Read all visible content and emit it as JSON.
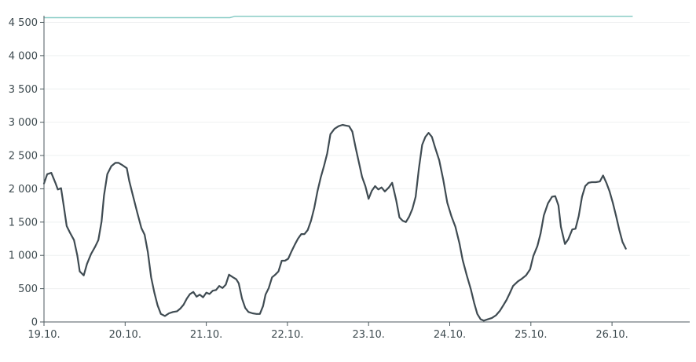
{
  "chart_data": {
    "type": "line",
    "title": "",
    "xlabel": "",
    "ylabel": "",
    "ylim": [
      0,
      4600
    ],
    "xlim_days": [
      0,
      8
    ],
    "grid": true,
    "y_ticks": [
      0,
      500,
      1000,
      1500,
      2000,
      2500,
      3000,
      3500,
      4000,
      4500
    ],
    "y_tick_labels": [
      "0",
      "500",
      "1 000",
      "1 500",
      "2 000",
      "2 500",
      "3 000",
      "3 500",
      "4 000",
      "4 500"
    ],
    "x_ticks": [
      {
        "day": 0,
        "label": "19.10."
      },
      {
        "day": 1,
        "label": "20.10."
      },
      {
        "day": 2,
        "label": "21.10."
      },
      {
        "day": 3,
        "label": "22.10."
      },
      {
        "day": 4,
        "label": "23.10."
      },
      {
        "day": 5,
        "label": "24.10."
      },
      {
        "day": 6,
        "label": "25.10."
      },
      {
        "day": 7,
        "label": "26.10."
      }
    ],
    "colors": {
      "main_series": "#3f4b52",
      "capacity_series": "#88ccc6"
    },
    "series": [
      {
        "key": "capacity",
        "points": [
          [
            0,
            4570
          ],
          [
            2.29,
            4570
          ],
          [
            2.35,
            4590
          ],
          [
            7.25,
            4590
          ]
        ]
      },
      {
        "key": "main",
        "points": [
          [
            0.0,
            2080
          ],
          [
            0.04,
            2220
          ],
          [
            0.09,
            2240
          ],
          [
            0.14,
            2090
          ],
          [
            0.17,
            1990
          ],
          [
            0.21,
            2010
          ],
          [
            0.24,
            1770
          ],
          [
            0.28,
            1440
          ],
          [
            0.32,
            1340
          ],
          [
            0.37,
            1230
          ],
          [
            0.41,
            1000
          ],
          [
            0.44,
            760
          ],
          [
            0.49,
            700
          ],
          [
            0.53,
            870
          ],
          [
            0.58,
            1020
          ],
          [
            0.63,
            1130
          ],
          [
            0.67,
            1230
          ],
          [
            0.71,
            1510
          ],
          [
            0.74,
            1900
          ],
          [
            0.78,
            2220
          ],
          [
            0.83,
            2340
          ],
          [
            0.88,
            2390
          ],
          [
            0.92,
            2390
          ],
          [
            0.96,
            2360
          ],
          [
            1.02,
            2310
          ],
          [
            1.05,
            2120
          ],
          [
            1.1,
            1880
          ],
          [
            1.15,
            1640
          ],
          [
            1.2,
            1410
          ],
          [
            1.24,
            1310
          ],
          [
            1.28,
            1050
          ],
          [
            1.32,
            670
          ],
          [
            1.36,
            440
          ],
          [
            1.4,
            250
          ],
          [
            1.44,
            120
          ],
          [
            1.49,
            90
          ],
          [
            1.54,
            130
          ],
          [
            1.59,
            150
          ],
          [
            1.64,
            160
          ],
          [
            1.68,
            200
          ],
          [
            1.72,
            260
          ],
          [
            1.76,
            350
          ],
          [
            1.8,
            420
          ],
          [
            1.84,
            450
          ],
          [
            1.88,
            380
          ],
          [
            1.92,
            410
          ],
          [
            1.96,
            370
          ],
          [
            2.0,
            440
          ],
          [
            2.04,
            420
          ],
          [
            2.08,
            470
          ],
          [
            2.12,
            480
          ],
          [
            2.16,
            540
          ],
          [
            2.2,
            510
          ],
          [
            2.24,
            560
          ],
          [
            2.28,
            710
          ],
          [
            2.33,
            670
          ],
          [
            2.37,
            640
          ],
          [
            2.4,
            580
          ],
          [
            2.44,
            350
          ],
          [
            2.48,
            210
          ],
          [
            2.52,
            150
          ],
          [
            2.57,
            130
          ],
          [
            2.62,
            120
          ],
          [
            2.66,
            120
          ],
          [
            2.7,
            240
          ],
          [
            2.73,
            410
          ],
          [
            2.77,
            510
          ],
          [
            2.81,
            670
          ],
          [
            2.85,
            710
          ],
          [
            2.89,
            760
          ],
          [
            2.93,
            920
          ],
          [
            2.97,
            920
          ],
          [
            3.01,
            950
          ],
          [
            3.05,
            1060
          ],
          [
            3.09,
            1160
          ],
          [
            3.13,
            1250
          ],
          [
            3.17,
            1320
          ],
          [
            3.21,
            1320
          ],
          [
            3.25,
            1380
          ],
          [
            3.29,
            1520
          ],
          [
            3.33,
            1710
          ],
          [
            3.37,
            1960
          ],
          [
            3.41,
            2170
          ],
          [
            3.45,
            2340
          ],
          [
            3.49,
            2530
          ],
          [
            3.53,
            2820
          ],
          [
            3.58,
            2900
          ],
          [
            3.63,
            2940
          ],
          [
            3.68,
            2960
          ],
          [
            3.72,
            2950
          ],
          [
            3.76,
            2940
          ],
          [
            3.8,
            2860
          ],
          [
            3.84,
            2620
          ],
          [
            3.88,
            2400
          ],
          [
            3.92,
            2180
          ],
          [
            3.96,
            2040
          ],
          [
            4.0,
            1850
          ],
          [
            4.04,
            1970
          ],
          [
            4.08,
            2040
          ],
          [
            4.12,
            1990
          ],
          [
            4.16,
            2020
          ],
          [
            4.2,
            1960
          ],
          [
            4.25,
            2020
          ],
          [
            4.29,
            2090
          ],
          [
            4.34,
            1830
          ],
          [
            4.38,
            1570
          ],
          [
            4.42,
            1520
          ],
          [
            4.46,
            1500
          ],
          [
            4.5,
            1580
          ],
          [
            4.54,
            1700
          ],
          [
            4.58,
            1880
          ],
          [
            4.62,
            2300
          ],
          [
            4.66,
            2660
          ],
          [
            4.7,
            2780
          ],
          [
            4.74,
            2840
          ],
          [
            4.78,
            2780
          ],
          [
            4.82,
            2620
          ],
          [
            4.87,
            2430
          ],
          [
            4.92,
            2140
          ],
          [
            4.97,
            1790
          ],
          [
            5.02,
            1590
          ],
          [
            5.07,
            1430
          ],
          [
            5.12,
            1180
          ],
          [
            5.16,
            930
          ],
          [
            5.21,
            700
          ],
          [
            5.26,
            490
          ],
          [
            5.3,
            290
          ],
          [
            5.34,
            120
          ],
          [
            5.38,
            40
          ],
          [
            5.42,
            20
          ],
          [
            5.47,
            40
          ],
          [
            5.52,
            60
          ],
          [
            5.57,
            100
          ],
          [
            5.62,
            170
          ],
          [
            5.66,
            250
          ],
          [
            5.7,
            330
          ],
          [
            5.74,
            430
          ],
          [
            5.78,
            540
          ],
          [
            5.84,
            610
          ],
          [
            5.89,
            650
          ],
          [
            5.94,
            700
          ],
          [
            5.99,
            790
          ],
          [
            6.03,
            990
          ],
          [
            6.08,
            1140
          ],
          [
            6.12,
            1330
          ],
          [
            6.16,
            1600
          ],
          [
            6.21,
            1780
          ],
          [
            6.26,
            1880
          ],
          [
            6.3,
            1890
          ],
          [
            6.34,
            1750
          ],
          [
            6.37,
            1430
          ],
          [
            6.42,
            1170
          ],
          [
            6.46,
            1240
          ],
          [
            6.51,
            1390
          ],
          [
            6.55,
            1400
          ],
          [
            6.59,
            1590
          ],
          [
            6.63,
            1880
          ],
          [
            6.67,
            2040
          ],
          [
            6.71,
            2090
          ],
          [
            6.75,
            2100
          ],
          [
            6.8,
            2100
          ],
          [
            6.85,
            2110
          ],
          [
            6.89,
            2200
          ],
          [
            6.93,
            2090
          ],
          [
            6.97,
            1960
          ],
          [
            7.01,
            1790
          ],
          [
            7.05,
            1590
          ],
          [
            7.09,
            1380
          ],
          [
            7.13,
            1200
          ],
          [
            7.17,
            1100
          ]
        ]
      }
    ]
  }
}
